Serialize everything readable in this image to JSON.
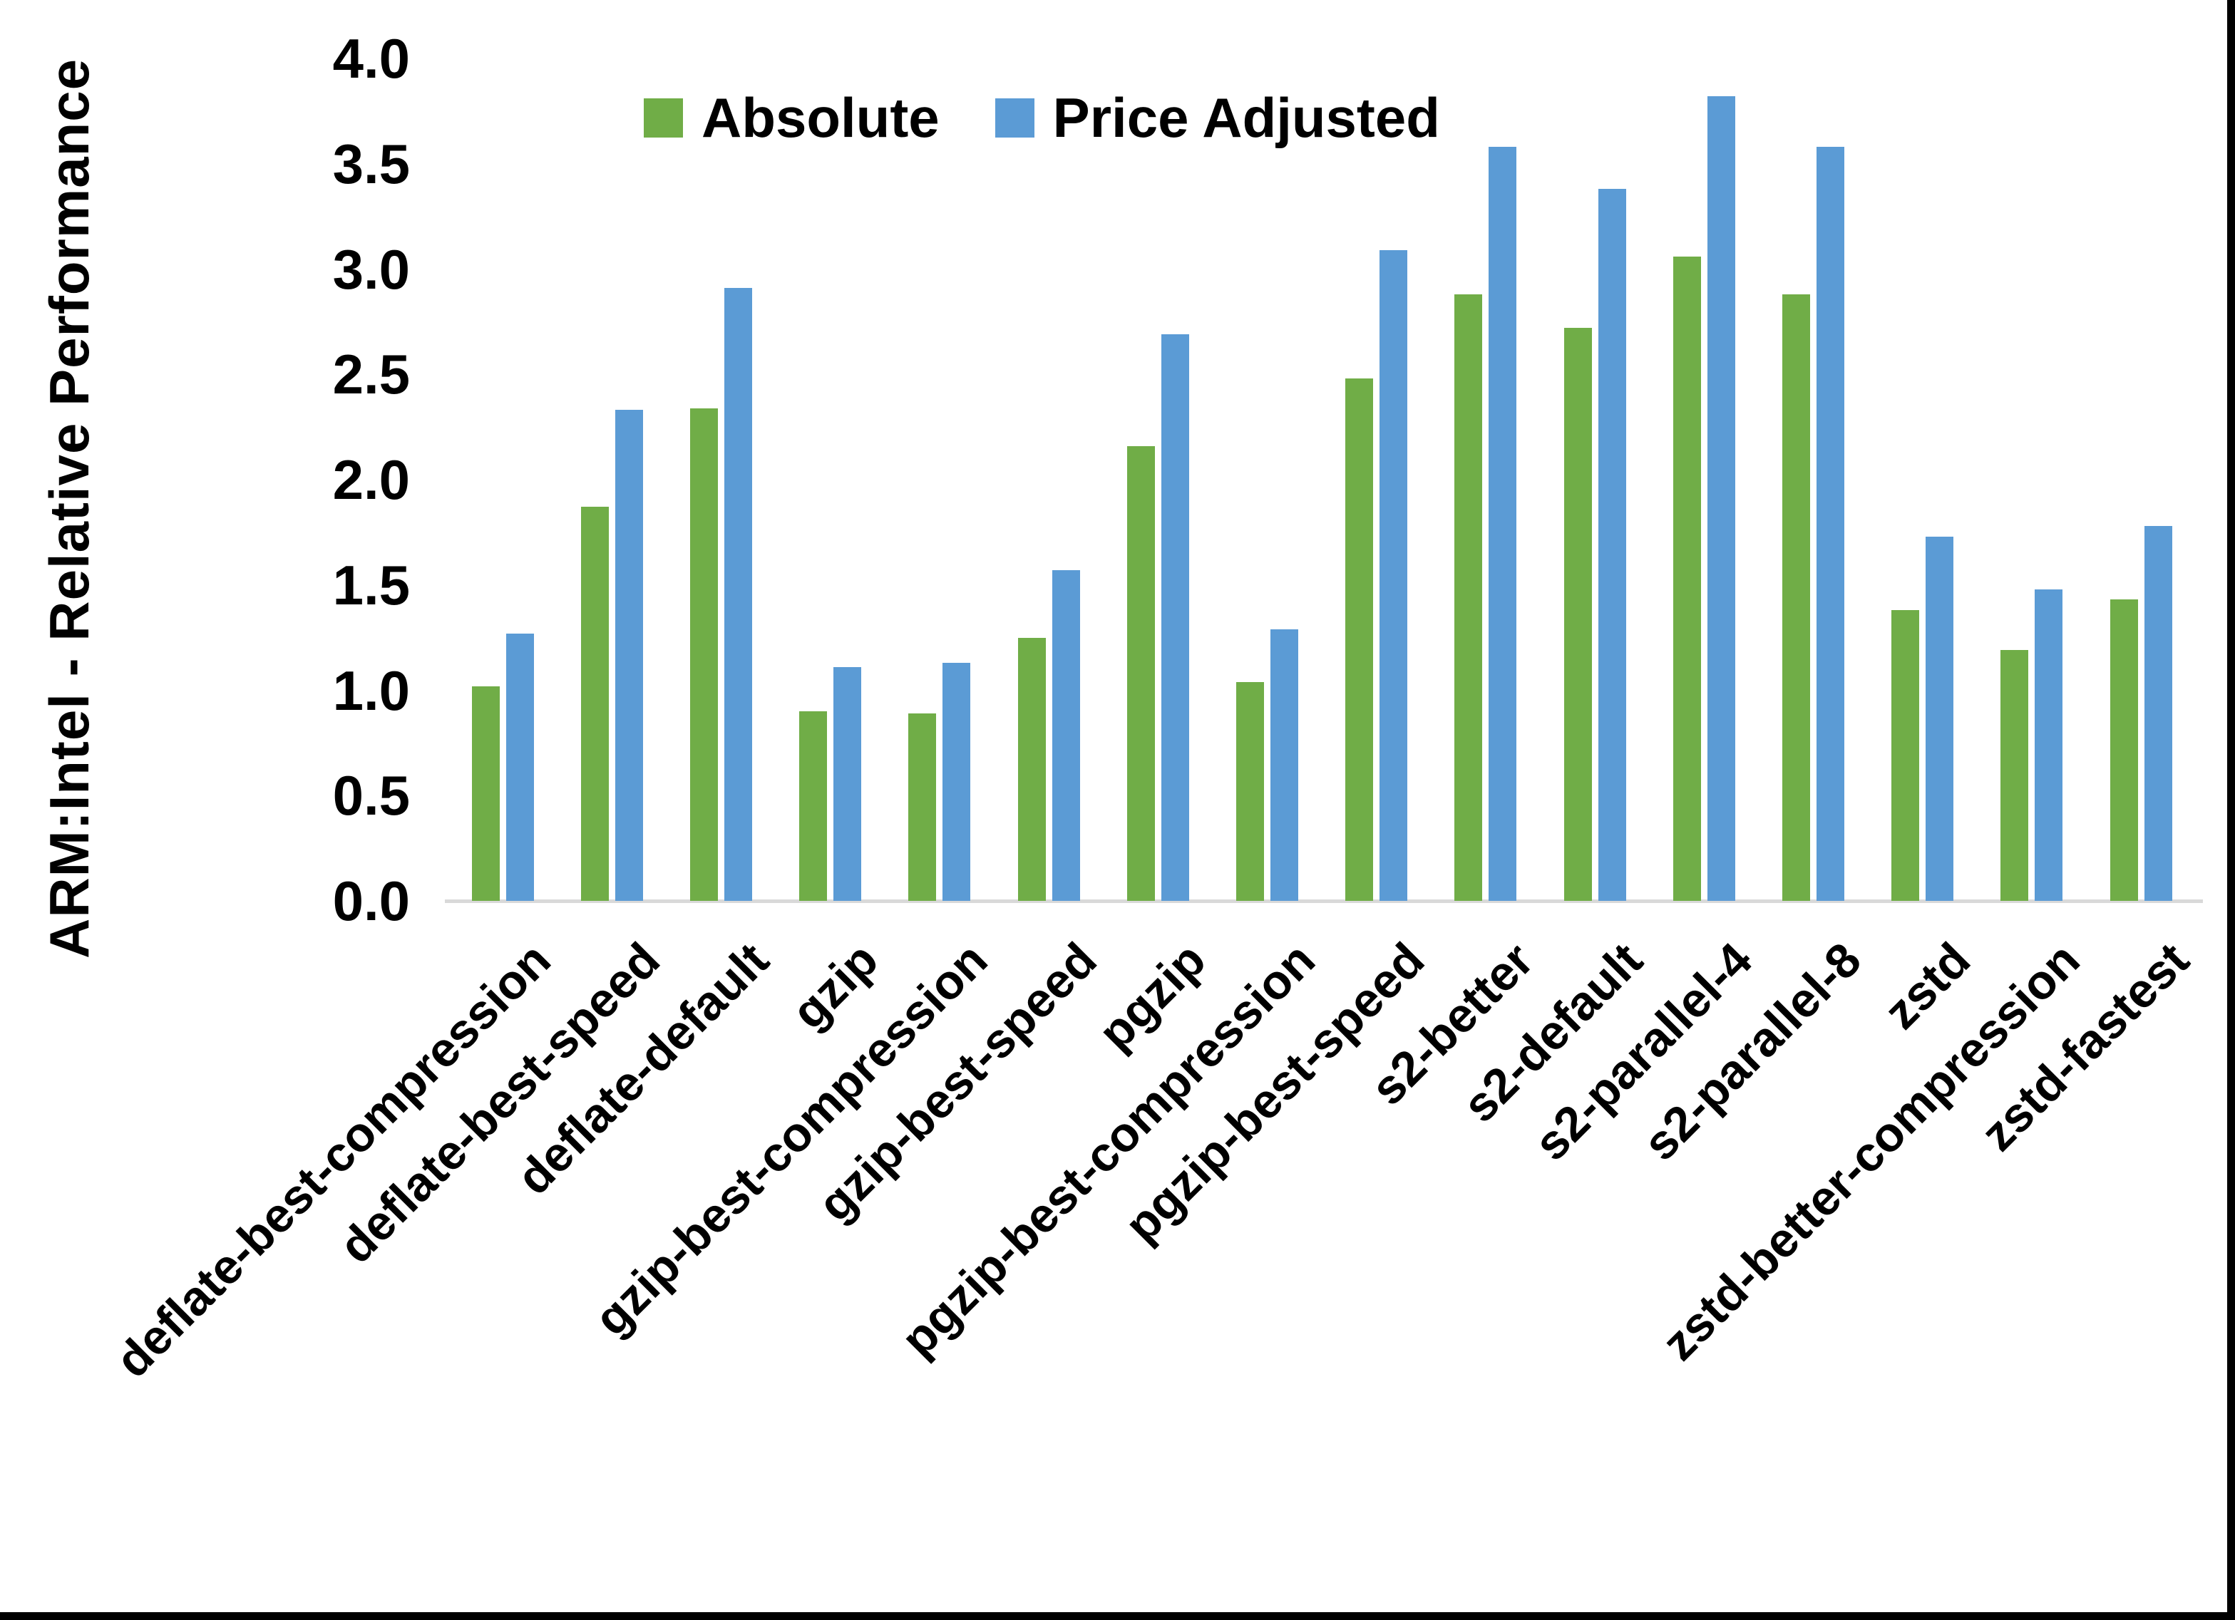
{
  "chart_data": {
    "type": "bar",
    "title": "",
    "xlabel": "",
    "ylabel": "ARM:Intel - Relative Performance",
    "ylim": [
      0.0,
      4.0
    ],
    "ytick_step": 0.5,
    "ytick_labels": [
      "0.0",
      "0.5",
      "1.0",
      "1.5",
      "2.0",
      "2.5",
      "3.0",
      "3.5",
      "4.0"
    ],
    "grid": false,
    "legend_position": "top-center",
    "categories": [
      "deflate-best-compression",
      "deflate-best-speed",
      "deflate-default",
      "gzip",
      "gzip-best-compression",
      "gzip-best-speed",
      "pgzip",
      "pgzip-best-compression",
      "pgzip-best-speed",
      "s2-better",
      "s2-default",
      "s2-parallel-4",
      "s2-parallel-8",
      "zstd",
      "zstd-better-compression",
      "zstd-fastest"
    ],
    "series": [
      {
        "name": "Absolute",
        "color": "#70AD47",
        "values": [
          1.02,
          1.87,
          2.34,
          0.9,
          0.89,
          1.25,
          2.16,
          1.04,
          2.48,
          2.88,
          2.72,
          3.06,
          2.88,
          1.38,
          1.19,
          1.43
        ]
      },
      {
        "name": "Price Adjusted",
        "color": "#5B9BD5",
        "values": [
          1.27,
          2.33,
          2.91,
          1.11,
          1.13,
          1.57,
          2.69,
          1.29,
          3.09,
          3.58,
          3.38,
          3.82,
          3.58,
          1.73,
          1.48,
          1.78
        ]
      }
    ]
  },
  "colors": {
    "background": "#FFFFFF",
    "axis_line": "#D9D9D9",
    "text": "#000000",
    "border": "#000000"
  }
}
